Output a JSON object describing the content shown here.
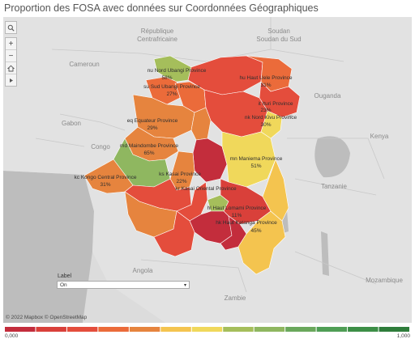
{
  "title": "Proportion des FOSA avec données sur Coordonnées Géographiques",
  "toolbar": {
    "search_icon": "search-icon",
    "zoom_in": "+",
    "zoom_out": "−",
    "home_icon": "home-icon",
    "expand_icon": "play-arrow-icon"
  },
  "countries": {
    "soudan": "Soudan",
    "sud_soudan": "Soudan du Sud",
    "republique": "République",
    "centrafricaine": "Centrafricaine",
    "cameroun": "Cameroun",
    "ouganda": "Ouganda",
    "gabon": "Gabon",
    "congo": "Congo",
    "kenya": "Kenya",
    "tanzanie": "Tanzanie",
    "angola": "Angola",
    "zambie": "Zambie",
    "mozambique": "Mozambique"
  },
  "provinces": [
    {
      "name": "nu Nord Ubangi Province",
      "value": "58%",
      "color": "#a5be5b"
    },
    {
      "name": "su Sud Ubangi Province",
      "value": "27%",
      "color": "#eb6b3a"
    },
    {
      "name": "hu Haut Uele Province",
      "value": "31%",
      "color": "#eb6b3a"
    },
    {
      "name": "it Ituri Province",
      "value": "23%",
      "color": "#e44d3c"
    },
    {
      "name": "nk Nord Kivu Province",
      "value": "30%",
      "color": "#e6843e"
    },
    {
      "name": "eq Equateur Province",
      "value": "29%",
      "color": "#e6843e"
    },
    {
      "name": "md Maindombe Province",
      "value": "65%",
      "color": "#8fb760"
    },
    {
      "name": "mn Maniema Province",
      "value": "51%",
      "color": "#f0d85b"
    },
    {
      "name": "kc Kongo Central Province",
      "value": "31%",
      "color": "#e6843e"
    },
    {
      "name": "ks Kasai Province",
      "value": "22%",
      "color": "#e44d3c"
    },
    {
      "name": "kr Kasai Oriental Province",
      "value": "",
      "color": "#c32d3c"
    },
    {
      "name": "hl Haut Lomami Province",
      "value": "11%",
      "color": "#c32d3c"
    },
    {
      "name": "hk Haut Katanga Province",
      "value": "45%",
      "color": "#f4c44f"
    }
  ],
  "filter": {
    "label": "Label",
    "value": "On"
  },
  "attribution": "© 2022 Mapbox © OpenStreetMap",
  "legend": {
    "min_label": "0,000",
    "max_label": "1,000",
    "colors": [
      "#c32d3c",
      "#d9403a",
      "#e44d3c",
      "#eb6b3a",
      "#e6843e",
      "#f4c44f",
      "#f0d85b",
      "#a5be5b",
      "#8fb760",
      "#6aa85c",
      "#4f9e55",
      "#3d8f47",
      "#2f7d3b"
    ]
  }
}
